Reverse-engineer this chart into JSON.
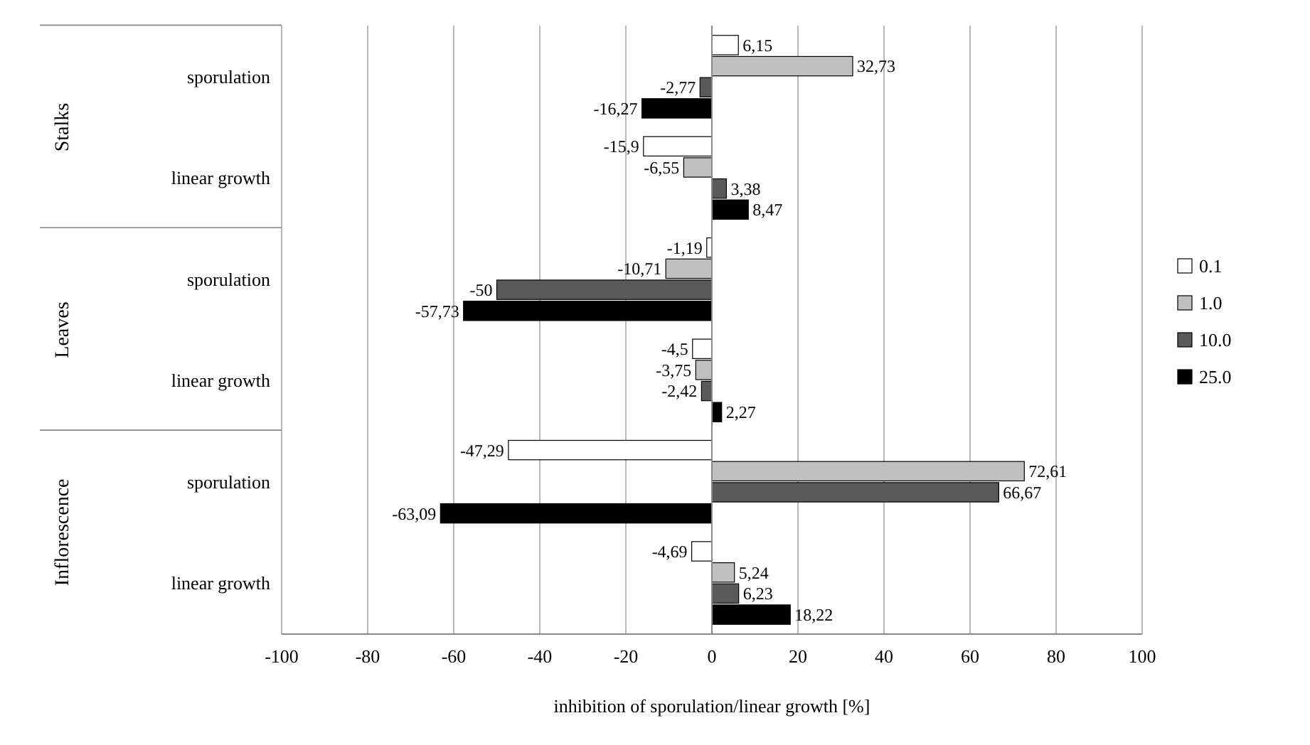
{
  "chart_data": {
    "type": "bar",
    "orientation": "horizontal",
    "xlabel": "inhibition of sporulation/linear growth [%]",
    "categories": [
      "sporulation",
      "linear growth",
      "sporulation",
      "linear growth",
      "sporulation",
      "linear growth"
    ],
    "annotations": [
      "Stalks",
      "Leaves",
      "Inflorescence"
    ],
    "series": [
      {
        "name": "0.1",
        "color": "#ffffff",
        "values": [
          6.15,
          -15.9,
          -1.19,
          -4.5,
          -47.29,
          -4.69
        ],
        "value_labels": [
          "6,15",
          "-15,9",
          "-1,19",
          "-4,5",
          "-47,29",
          "-4,69"
        ]
      },
      {
        "name": "1.0",
        "color": "#c0c0c0",
        "values": [
          32.73,
          -6.55,
          -10.71,
          -3.75,
          72.61,
          5.24
        ],
        "value_labels": [
          "32,73",
          "-6,55",
          "-10,71",
          "-3,75",
          "72,61",
          "5,24"
        ]
      },
      {
        "name": "10.0",
        "color": "#595959",
        "values": [
          -2.77,
          3.38,
          -50,
          -2.42,
          66.67,
          6.23
        ],
        "value_labels": [
          "-2,77",
          "3,38",
          "-50",
          "-2,42",
          "66,67",
          "6,23"
        ]
      },
      {
        "name": "25.0",
        "color": "#000000",
        "values": [
          -16.27,
          8.47,
          -57.73,
          2.27,
          -63.09,
          18.22
        ],
        "value_labels": [
          "-16,27",
          "8,47",
          "-57,73",
          "2,27",
          "-63,09",
          "18,22"
        ]
      }
    ],
    "xlim": [
      -100,
      100
    ],
    "xticks": [
      -100,
      -80,
      -60,
      -40,
      -20,
      0,
      20,
      40,
      60,
      80,
      100
    ],
    "grid": "x",
    "legend": "right"
  }
}
